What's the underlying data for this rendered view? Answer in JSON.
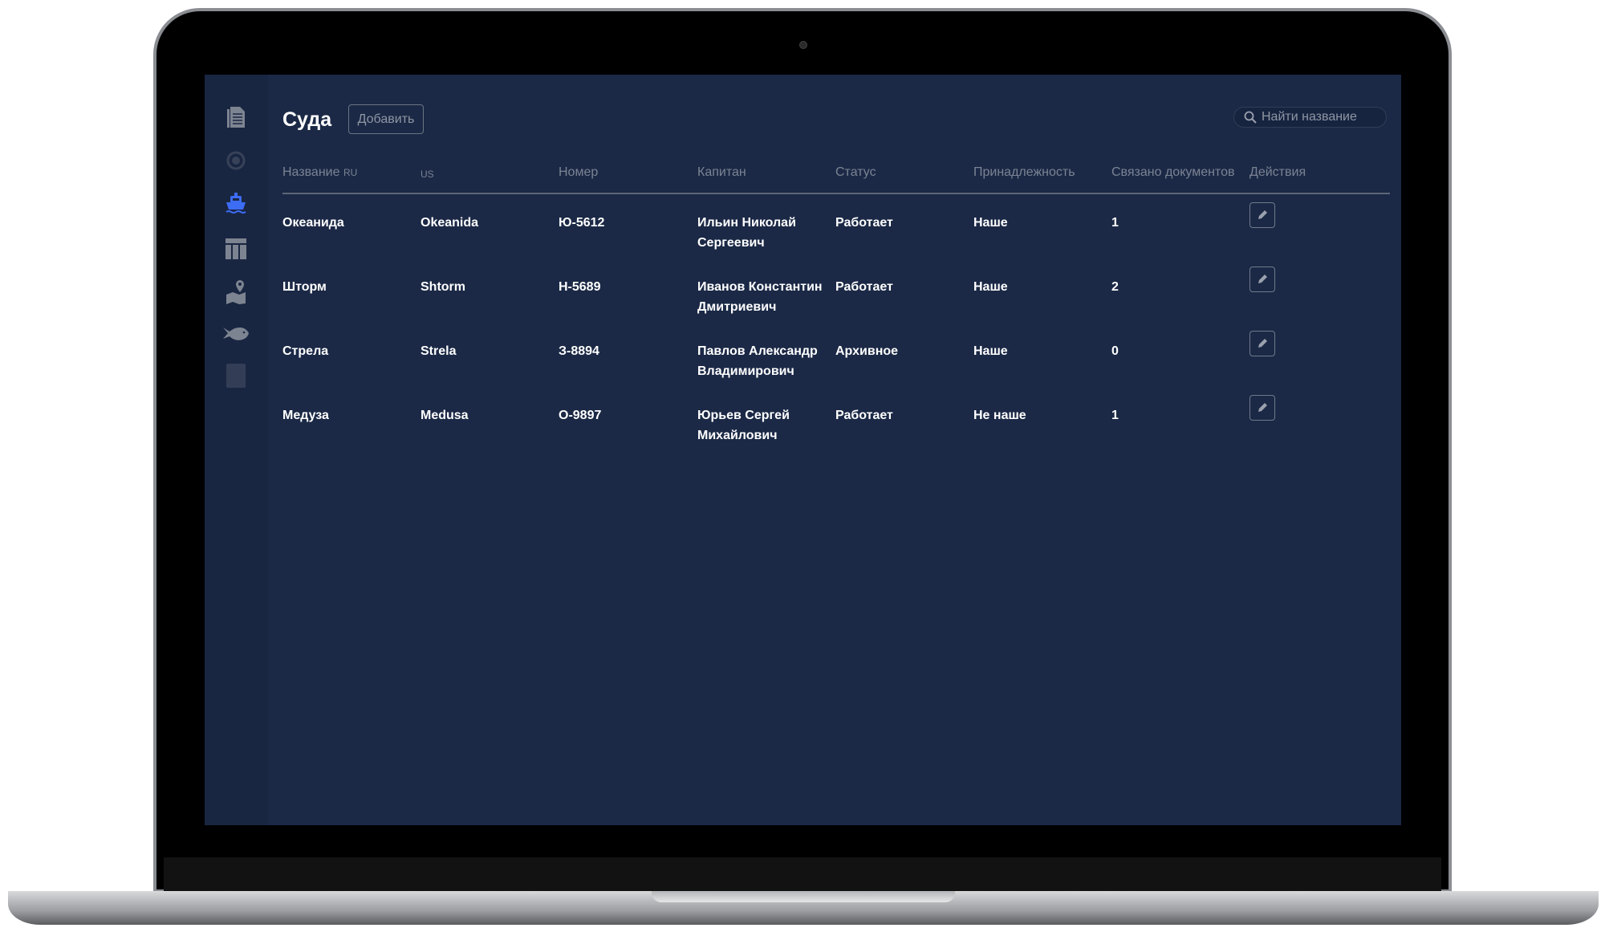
{
  "page": {
    "title": "Суда",
    "add_label": "Добавить",
    "search_placeholder": "Найти название"
  },
  "sidebar": {
    "items": [
      {
        "icon": "document-icon"
      },
      {
        "icon": "timer-icon"
      },
      {
        "icon": "ship-icon",
        "active": true
      },
      {
        "icon": "layout-icon"
      },
      {
        "icon": "map-pin-icon"
      },
      {
        "icon": "fish-icon"
      },
      {
        "icon": "report-icon"
      }
    ]
  },
  "colors": {
    "accent": "#3d6cf5",
    "background": "#1b2946",
    "text": "#ffffff",
    "muted": "#7b8393"
  },
  "table": {
    "headers": {
      "name_ru": "Название",
      "name_ru_suffix": "RU",
      "name_us": "US",
      "number": "Номер",
      "captain": "Капитан",
      "status": "Статус",
      "ownership": "Принадлежность",
      "docs": "Связано документов",
      "actions": "Действия"
    },
    "rows": [
      {
        "name_ru": "Океанида",
        "name_us": "Okeanida",
        "number": "Ю-5612",
        "captain": "Ильин Николай Сергеевич",
        "status": "Работает",
        "ownership": "Наше",
        "docs": "1"
      },
      {
        "name_ru": "Шторм",
        "name_us": "Shtorm",
        "number": "Н-5689",
        "captain": "Иванов Константин Дмитриевич",
        "status": "Работает",
        "ownership": "Наше",
        "docs": "2"
      },
      {
        "name_ru": "Стрела",
        "name_us": "Strela",
        "number": "З-8894",
        "captain": "Павлов Александр Владимирович",
        "status": "Архивное",
        "ownership": "Наше",
        "docs": "0"
      },
      {
        "name_ru": "Медуза",
        "name_us": "Medusa",
        "number": "О-9897",
        "captain": "Юрьев Сергей Михайлович",
        "status": "Работает",
        "ownership": "Не наше",
        "docs": "1"
      }
    ]
  }
}
